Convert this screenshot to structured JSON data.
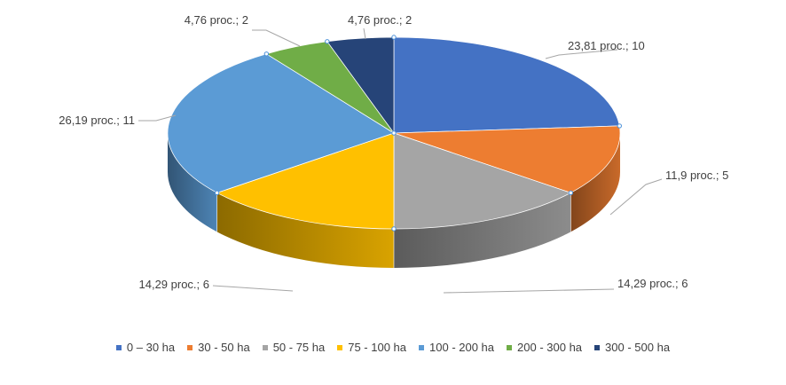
{
  "chart_data": {
    "type": "pie",
    "style": "3d",
    "legend_position": "bottom",
    "categories": [
      "0 – 30 ha",
      "30 - 50 ha",
      "50 - 75 ha",
      "75 - 100 ha",
      "100 - 200 ha",
      "200 - 300 ha",
      "300 - 500 ha"
    ],
    "values": [
      10,
      5,
      6,
      6,
      11,
      2,
      2
    ],
    "percentages": [
      23.81,
      11.9,
      14.29,
      14.29,
      26.19,
      4.76,
      4.76
    ],
    "colors": [
      "#4472C4",
      "#ED7D31",
      "#A5A5A5",
      "#FFC000",
      "#5B9BD5",
      "#70AD47",
      "#264478"
    ],
    "data_labels": [
      "23,81 proc.; 10",
      "11,9 proc.; 5",
      "14,29 proc.; 6",
      "14,29 proc.; 6",
      "26,19 proc.; 11",
      "4,76 proc.; 2",
      "4,76 proc.; 2"
    ]
  }
}
